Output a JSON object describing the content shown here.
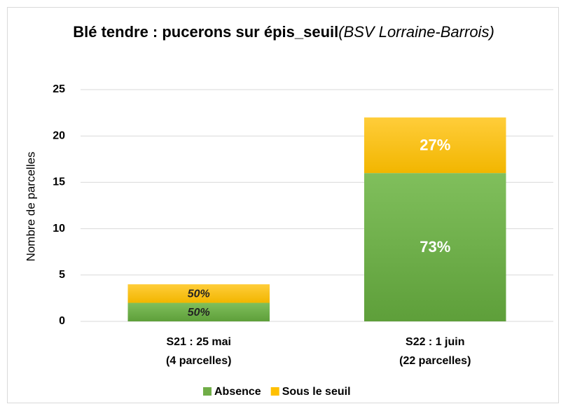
{
  "chart_data": {
    "type": "stacked_bar",
    "title": "Blé tendre : pucerons sur épis_seuil",
    "subtitle": "(BSV Lorraine-Barrois)",
    "ylabel": "Nombre de parcelles",
    "categories": [
      [
        "S21 : 25 mai",
        "(4 parcelles)"
      ],
      [
        "S22 : 1 juin",
        "(22 parcelles)"
      ]
    ],
    "series": [
      {
        "name": "Absence",
        "color": "#70ad47",
        "values": [
          2,
          16
        ],
        "labels": [
          "50%",
          "73%"
        ]
      },
      {
        "name": "Sous le seuil",
        "color": "#ffc000",
        "values": [
          2,
          6
        ],
        "labels": [
          "50%",
          "27%"
        ]
      }
    ],
    "ylim": [
      0,
      25
    ],
    "yticks": [
      0,
      5,
      10,
      15,
      20,
      25
    ],
    "grid": true,
    "legend": "bottom"
  }
}
